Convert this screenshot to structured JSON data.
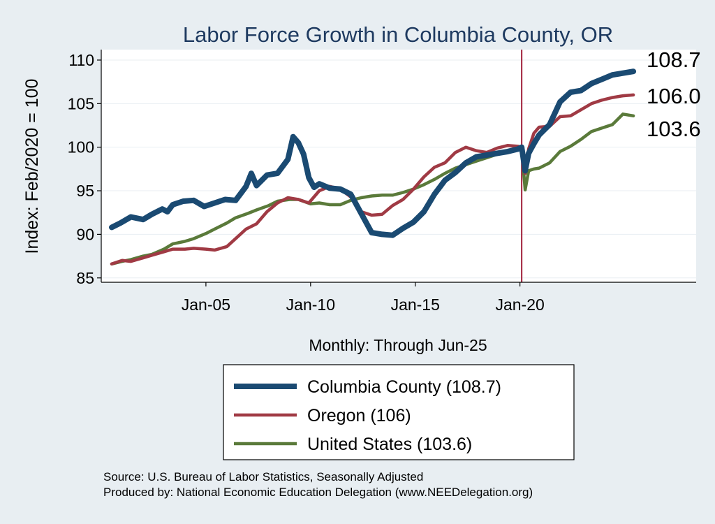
{
  "chart_data": {
    "type": "line",
    "title": "Labor Force Growth in Columbia  County, OR",
    "xlabel": "Monthly: Through Jun-25",
    "ylabel": "Index: Feb/2020 = 100",
    "ylim": [
      84.5,
      111.2
    ],
    "xlim": [
      "2000-01",
      "2028-06"
    ],
    "yticks": [
      85,
      90,
      95,
      100,
      105,
      110
    ],
    "xticks": [
      {
        "date": "2005-01",
        "label": "Jan-05"
      },
      {
        "date": "2010-01",
        "label": "Jan-10"
      },
      {
        "date": "2015-01",
        "label": "Jan-15"
      },
      {
        "date": "2020-01",
        "label": "Jan-20"
      }
    ],
    "grid": true,
    "reference_line": {
      "date": "2020-02",
      "color": "#a0203a"
    },
    "legend_position": "bottom",
    "series": [
      {
        "name": "Columbia  County (108.7)",
        "end_label": "108.7",
        "color": "#1a4a72",
        "points": [
          [
            "2000-07",
            90.8
          ],
          [
            "2000-12",
            91.3
          ],
          [
            "2001-06",
            92.0
          ],
          [
            "2002-01",
            91.7
          ],
          [
            "2002-06",
            92.3
          ],
          [
            "2002-12",
            92.9
          ],
          [
            "2003-03",
            92.6
          ],
          [
            "2003-06",
            93.4
          ],
          [
            "2003-12",
            93.8
          ],
          [
            "2004-06",
            93.9
          ],
          [
            "2004-12",
            93.2
          ],
          [
            "2005-06",
            93.6
          ],
          [
            "2005-12",
            94.0
          ],
          [
            "2006-06",
            93.9
          ],
          [
            "2006-12",
            95.5
          ],
          [
            "2007-03",
            97.0
          ],
          [
            "2007-06",
            95.6
          ],
          [
            "2007-12",
            96.8
          ],
          [
            "2008-06",
            97.0
          ],
          [
            "2008-12",
            98.6
          ],
          [
            "2009-03",
            101.2
          ],
          [
            "2009-06",
            100.5
          ],
          [
            "2009-09",
            99.2
          ],
          [
            "2009-12",
            96.5
          ],
          [
            "2010-03",
            95.4
          ],
          [
            "2010-06",
            95.8
          ],
          [
            "2010-12",
            95.3
          ],
          [
            "2011-06",
            95.2
          ],
          [
            "2011-12",
            94.6
          ],
          [
            "2012-06",
            92.4
          ],
          [
            "2012-12",
            90.2
          ],
          [
            "2013-06",
            90.0
          ],
          [
            "2013-12",
            89.9
          ],
          [
            "2014-06",
            90.7
          ],
          [
            "2014-12",
            91.4
          ],
          [
            "2015-06",
            92.6
          ],
          [
            "2015-12",
            94.6
          ],
          [
            "2016-06",
            96.2
          ],
          [
            "2016-12",
            97.1
          ],
          [
            "2017-06",
            98.2
          ],
          [
            "2017-12",
            98.9
          ],
          [
            "2018-06",
            99.1
          ],
          [
            "2018-12",
            99.3
          ],
          [
            "2019-06",
            99.5
          ],
          [
            "2019-12",
            99.8
          ],
          [
            "2020-02",
            100.0
          ],
          [
            "2020-04",
            97.3
          ],
          [
            "2020-06",
            99.3
          ],
          [
            "2020-09",
            100.4
          ],
          [
            "2020-12",
            101.4
          ],
          [
            "2021-06",
            102.6
          ],
          [
            "2021-12",
            105.2
          ],
          [
            "2022-06",
            106.3
          ],
          [
            "2022-12",
            106.5
          ],
          [
            "2023-06",
            107.3
          ],
          [
            "2023-12",
            107.8
          ],
          [
            "2024-06",
            108.3
          ],
          [
            "2024-12",
            108.5
          ],
          [
            "2025-06",
            108.7
          ]
        ]
      },
      {
        "name": "Oregon (106)",
        "end_label": "106.0",
        "color": "#a03a44",
        "points": [
          [
            "2000-07",
            86.6
          ],
          [
            "2001-01",
            87.0
          ],
          [
            "2001-06",
            86.9
          ],
          [
            "2002-01",
            87.3
          ],
          [
            "2002-06",
            87.6
          ],
          [
            "2003-01",
            88.0
          ],
          [
            "2003-06",
            88.3
          ],
          [
            "2004-01",
            88.3
          ],
          [
            "2004-06",
            88.4
          ],
          [
            "2005-01",
            88.3
          ],
          [
            "2005-06",
            88.2
          ],
          [
            "2006-01",
            88.6
          ],
          [
            "2006-06",
            89.5
          ],
          [
            "2006-12",
            90.6
          ],
          [
            "2007-06",
            91.2
          ],
          [
            "2007-12",
            92.6
          ],
          [
            "2008-06",
            93.6
          ],
          [
            "2008-12",
            94.2
          ],
          [
            "2009-06",
            94.0
          ],
          [
            "2009-12",
            93.6
          ],
          [
            "2010-06",
            95.0
          ],
          [
            "2010-12",
            95.5
          ],
          [
            "2011-06",
            95.2
          ],
          [
            "2011-12",
            94.3
          ],
          [
            "2012-06",
            92.6
          ],
          [
            "2012-12",
            92.2
          ],
          [
            "2013-06",
            92.3
          ],
          [
            "2013-12",
            93.3
          ],
          [
            "2014-06",
            94.0
          ],
          [
            "2014-12",
            95.2
          ],
          [
            "2015-06",
            96.6
          ],
          [
            "2015-12",
            97.7
          ],
          [
            "2016-06",
            98.2
          ],
          [
            "2016-12",
            99.4
          ],
          [
            "2017-06",
            100.0
          ],
          [
            "2017-12",
            99.6
          ],
          [
            "2018-06",
            99.4
          ],
          [
            "2018-12",
            99.9
          ],
          [
            "2019-06",
            100.2
          ],
          [
            "2019-12",
            100.1
          ],
          [
            "2020-02",
            100.0
          ],
          [
            "2020-04",
            97.0
          ],
          [
            "2020-06",
            99.8
          ],
          [
            "2020-09",
            101.6
          ],
          [
            "2020-12",
            102.3
          ],
          [
            "2021-06",
            102.4
          ],
          [
            "2021-12",
            103.5
          ],
          [
            "2022-06",
            103.6
          ],
          [
            "2022-12",
            104.3
          ],
          [
            "2023-06",
            105.0
          ],
          [
            "2023-12",
            105.4
          ],
          [
            "2024-06",
            105.7
          ],
          [
            "2024-12",
            105.9
          ],
          [
            "2025-06",
            106.0
          ]
        ]
      },
      {
        "name": "United States (103.6)",
        "end_label": "103.6",
        "color": "#5a7a3a",
        "points": [
          [
            "2000-07",
            86.6
          ],
          [
            "2001-01",
            86.9
          ],
          [
            "2001-06",
            87.1
          ],
          [
            "2002-01",
            87.5
          ],
          [
            "2002-06",
            87.7
          ],
          [
            "2003-01",
            88.3
          ],
          [
            "2003-06",
            88.9
          ],
          [
            "2004-01",
            89.2
          ],
          [
            "2004-06",
            89.5
          ],
          [
            "2005-01",
            90.1
          ],
          [
            "2005-06",
            90.6
          ],
          [
            "2006-01",
            91.3
          ],
          [
            "2006-06",
            91.9
          ],
          [
            "2007-01",
            92.4
          ],
          [
            "2007-06",
            92.8
          ],
          [
            "2008-01",
            93.3
          ],
          [
            "2008-06",
            93.8
          ],
          [
            "2009-01",
            94.0
          ],
          [
            "2009-06",
            94.0
          ],
          [
            "2010-01",
            93.5
          ],
          [
            "2010-06",
            93.6
          ],
          [
            "2010-12",
            93.4
          ],
          [
            "2011-06",
            93.4
          ],
          [
            "2011-12",
            93.9
          ],
          [
            "2012-06",
            94.2
          ],
          [
            "2012-12",
            94.4
          ],
          [
            "2013-06",
            94.5
          ],
          [
            "2013-12",
            94.5
          ],
          [
            "2014-06",
            94.8
          ],
          [
            "2014-12",
            95.2
          ],
          [
            "2015-06",
            95.7
          ],
          [
            "2015-12",
            96.3
          ],
          [
            "2016-06",
            97.0
          ],
          [
            "2016-12",
            97.6
          ],
          [
            "2017-06",
            98.0
          ],
          [
            "2017-12",
            98.4
          ],
          [
            "2018-06",
            98.8
          ],
          [
            "2018-12",
            99.2
          ],
          [
            "2019-06",
            99.5
          ],
          [
            "2019-12",
            99.8
          ],
          [
            "2020-02",
            100.0
          ],
          [
            "2020-04",
            95.1
          ],
          [
            "2020-06",
            97.3
          ],
          [
            "2020-09",
            97.5
          ],
          [
            "2020-12",
            97.6
          ],
          [
            "2021-06",
            98.2
          ],
          [
            "2021-12",
            99.5
          ],
          [
            "2022-06",
            100.1
          ],
          [
            "2022-12",
            100.9
          ],
          [
            "2023-06",
            101.8
          ],
          [
            "2023-12",
            102.2
          ],
          [
            "2024-06",
            102.6
          ],
          [
            "2024-12",
            103.8
          ],
          [
            "2025-06",
            103.6
          ]
        ]
      }
    ],
    "source": "Source: U.S. Bureau of Labor Statistics, Seasonally Adjusted",
    "produced_by": "Produced by: National Economic Education Delegation (www.NEEDelegation.org)"
  }
}
